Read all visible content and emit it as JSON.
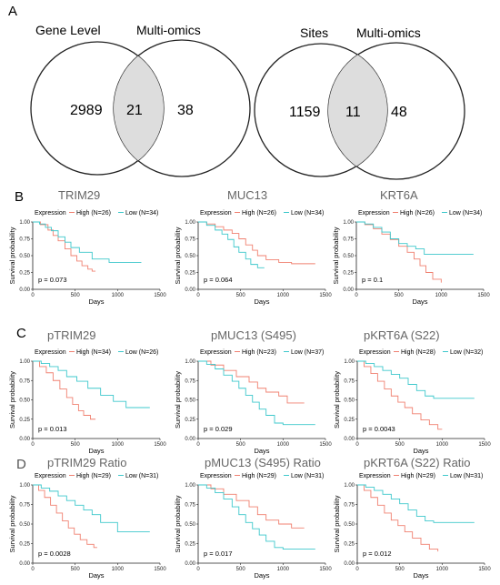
{
  "panel_labels": {
    "A": "A",
    "B": "B",
    "C": "C",
    "D": "D"
  },
  "venn": [
    {
      "left_label": "Gene Level",
      "right_label": "Multi-omics",
      "left_only": "2989",
      "overlap": "21",
      "right_only": "38"
    },
    {
      "left_label": "Sites",
      "right_label": "Multi-omics",
      "left_only": "1159",
      "overlap": "11",
      "right_only": "48"
    }
  ],
  "colors": {
    "high": "#f08070",
    "low": "#3ec8cc",
    "venn_stroke": "#222222",
    "overlap_fill": "#dddddd"
  },
  "chart_data": [
    {
      "type": "line",
      "title": "TRIM29",
      "legend_title": "Expression",
      "high_label": "High (N=26)",
      "low_label": "Low (N=34)",
      "p_value": "p = 0.073",
      "xlabel": "Days",
      "ylabel": "Survival probability",
      "xlim": [
        0,
        1500
      ],
      "ylim": [
        0,
        1
      ],
      "xticks": [
        0,
        500,
        1000,
        1500
      ],
      "yticks": [
        0,
        0.25,
        0.5,
        0.75,
        1.0
      ],
      "ytick_labels": [
        "0.00",
        "0.25",
        "0.50",
        "0.75",
        "1.00"
      ],
      "series": [
        {
          "name": "High (N=26)",
          "x": [
            0,
            90,
            180,
            240,
            300,
            380,
            450,
            520,
            580,
            650,
            700,
            740
          ],
          "y": [
            1.0,
            0.96,
            0.88,
            0.8,
            0.72,
            0.6,
            0.5,
            0.42,
            0.35,
            0.3,
            0.27,
            0.27
          ]
        },
        {
          "name": "Low (N=34)",
          "x": [
            0,
            80,
            150,
            220,
            300,
            380,
            450,
            550,
            700,
            900,
            1100,
            1280
          ],
          "y": [
            1.0,
            0.97,
            0.92,
            0.87,
            0.78,
            0.7,
            0.62,
            0.55,
            0.45,
            0.4,
            0.4,
            0.4
          ]
        }
      ]
    },
    {
      "type": "line",
      "title": "MUC13",
      "legend_title": "Expression",
      "high_label": "High (N=26)",
      "low_label": "Low (N=34)",
      "p_value": "p = 0.064",
      "xlabel": "Days",
      "ylabel": "Survival probability",
      "xlim": [
        0,
        1500
      ],
      "ylim": [
        0,
        1
      ],
      "xticks": [
        0,
        500,
        1000,
        1500
      ],
      "yticks": [
        0,
        0.25,
        0.5,
        0.75,
        1.0
      ],
      "ytick_labels": [
        "0.00",
        "0.25",
        "0.50",
        "0.75",
        "1.00"
      ],
      "series": [
        {
          "name": "High (N=26)",
          "x": [
            0,
            100,
            200,
            300,
            400,
            480,
            560,
            640,
            700,
            800,
            950,
            1100,
            1380
          ],
          "y": [
            1.0,
            0.97,
            0.93,
            0.88,
            0.83,
            0.75,
            0.66,
            0.58,
            0.5,
            0.44,
            0.4,
            0.38,
            0.38
          ]
        },
        {
          "name": "Low (N=34)",
          "x": [
            0,
            100,
            200,
            280,
            350,
            420,
            480,
            560,
            620,
            700,
            780
          ],
          "y": [
            1.0,
            0.95,
            0.88,
            0.82,
            0.74,
            0.63,
            0.55,
            0.45,
            0.37,
            0.32,
            0.32
          ]
        }
      ]
    },
    {
      "type": "line",
      "title": "KRT6A",
      "legend_title": "Expression",
      "high_label": "High (N=26)",
      "low_label": "Low (N=34)",
      "p_value": "p = 0.1",
      "xlabel": "Days",
      "ylabel": "Survival probability",
      "xlim": [
        0,
        1500
      ],
      "ylim": [
        0,
        1
      ],
      "xticks": [
        0,
        500,
        1000,
        1500
      ],
      "yticks": [
        0,
        0.25,
        0.5,
        0.75,
        1.0
      ],
      "ytick_labels": [
        "0.00",
        "0.25",
        "0.50",
        "0.75",
        "1.00"
      ],
      "series": [
        {
          "name": "High (N=26)",
          "x": [
            0,
            100,
            200,
            300,
            400,
            500,
            600,
            680,
            750,
            820,
            900,
            1000
          ],
          "y": [
            1.0,
            0.96,
            0.9,
            0.82,
            0.74,
            0.64,
            0.55,
            0.45,
            0.35,
            0.25,
            0.15,
            0.1
          ]
        },
        {
          "name": "Low (N=34)",
          "x": [
            0,
            100,
            200,
            300,
            400,
            500,
            600,
            700,
            800,
            1000,
            1200,
            1380
          ],
          "y": [
            1.0,
            0.97,
            0.92,
            0.85,
            0.75,
            0.68,
            0.64,
            0.6,
            0.52,
            0.52,
            0.52,
            0.52
          ]
        }
      ]
    },
    {
      "type": "line",
      "title": "pTRIM29",
      "legend_title": "Expression",
      "high_label": "High (N=34)",
      "low_label": "Low (N=26)",
      "p_value": "p = 0.013",
      "xlabel": "Days",
      "ylabel": "Survival probability",
      "xlim": [
        0,
        1500
      ],
      "ylim": [
        0,
        1
      ],
      "xticks": [
        0,
        500,
        1000,
        1500
      ],
      "yticks": [
        0,
        0.25,
        0.5,
        0.75,
        1.0
      ],
      "ytick_labels": [
        "0.00",
        "0.25",
        "0.50",
        "0.75",
        "1.00"
      ],
      "series": [
        {
          "name": "High (N=34)",
          "x": [
            0,
            80,
            160,
            240,
            320,
            400,
            470,
            540,
            600,
            680,
            740
          ],
          "y": [
            1.0,
            0.93,
            0.85,
            0.75,
            0.64,
            0.53,
            0.44,
            0.36,
            0.3,
            0.25,
            0.25
          ]
        },
        {
          "name": "Low (N=26)",
          "x": [
            0,
            100,
            200,
            300,
            400,
            520,
            650,
            800,
            950,
            1100,
            1380
          ],
          "y": [
            1.0,
            0.97,
            0.93,
            0.88,
            0.8,
            0.74,
            0.65,
            0.56,
            0.48,
            0.4,
            0.4
          ]
        }
      ]
    },
    {
      "type": "line",
      "title": "pMUC13 (S495)",
      "legend_title": "Expression",
      "high_label": "High (N=23)",
      "low_label": "Low (N=37)",
      "p_value": "p = 0.029",
      "xlabel": "Days",
      "ylabel": "Survival probability",
      "xlim": [
        0,
        1500
      ],
      "ylim": [
        0,
        1
      ],
      "xticks": [
        0,
        500,
        1000,
        1500
      ],
      "yticks": [
        0,
        0.25,
        0.5,
        0.75,
        1.0
      ],
      "ytick_labels": [
        "0.00",
        "0.25",
        "0.50",
        "0.75",
        "1.00"
      ],
      "series": [
        {
          "name": "High (N=23)",
          "x": [
            0,
            150,
            300,
            450,
            600,
            700,
            800,
            950,
            1050,
            1150,
            1250
          ],
          "y": [
            1.0,
            0.95,
            0.88,
            0.8,
            0.73,
            0.65,
            0.6,
            0.55,
            0.46,
            0.46,
            0.46
          ]
        },
        {
          "name": "Low (N=37)",
          "x": [
            0,
            100,
            200,
            300,
            400,
            480,
            560,
            640,
            720,
            800,
            900,
            1000,
            1380
          ],
          "y": [
            1.0,
            0.96,
            0.9,
            0.82,
            0.74,
            0.65,
            0.56,
            0.47,
            0.38,
            0.3,
            0.2,
            0.18,
            0.18
          ]
        }
      ]
    },
    {
      "type": "line",
      "title": "pKRT6A (S22)",
      "legend_title": "Expression",
      "high_label": "High (N=28)",
      "low_label": "Low (N=32)",
      "p_value": "p = 0.0043",
      "xlabel": "Days",
      "ylabel": "Survival probability",
      "xlim": [
        0,
        1500
      ],
      "ylim": [
        0,
        1
      ],
      "xticks": [
        0,
        500,
        1000,
        1500
      ],
      "yticks": [
        0,
        0.25,
        0.5,
        0.75,
        1.0
      ],
      "ytick_labels": [
        "0.00",
        "0.25",
        "0.50",
        "0.75",
        "1.00"
      ],
      "series": [
        {
          "name": "High (N=28)",
          "x": [
            0,
            80,
            160,
            240,
            320,
            400,
            480,
            560,
            650,
            750,
            850,
            950,
            1000
          ],
          "y": [
            1.0,
            0.93,
            0.84,
            0.74,
            0.64,
            0.55,
            0.47,
            0.4,
            0.32,
            0.24,
            0.18,
            0.12,
            0.12
          ]
        },
        {
          "name": "Low (N=32)",
          "x": [
            0,
            100,
            200,
            300,
            400,
            500,
            600,
            700,
            800,
            900,
            1100,
            1380
          ],
          "y": [
            1.0,
            0.97,
            0.93,
            0.88,
            0.83,
            0.78,
            0.7,
            0.62,
            0.55,
            0.52,
            0.52,
            0.52
          ]
        }
      ]
    },
    {
      "type": "line",
      "title": "pTRIM29 Ratio",
      "legend_title": "Expression",
      "high_label": "High (N=29)",
      "low_label": "Low (N=31)",
      "p_value": "p = 0.0028",
      "xlabel": "Days",
      "ylabel": "Survival probability",
      "xlim": [
        0,
        1500
      ],
      "ylim": [
        0,
        1
      ],
      "xticks": [
        0,
        500,
        1000,
        1500
      ],
      "yticks": [
        0,
        0.25,
        0.5,
        0.75,
        1.0
      ],
      "ytick_labels": [
        "0.00",
        "0.25",
        "0.50",
        "0.75",
        "1.00"
      ],
      "series": [
        {
          "name": "High (N=29)",
          "x": [
            0,
            70,
            140,
            210,
            280,
            350,
            420,
            490,
            560,
            640,
            720,
            760
          ],
          "y": [
            1.0,
            0.93,
            0.84,
            0.74,
            0.64,
            0.54,
            0.45,
            0.37,
            0.3,
            0.24,
            0.2,
            0.2
          ]
        },
        {
          "name": "Low (N=31)",
          "x": [
            0,
            100,
            200,
            300,
            400,
            500,
            600,
            700,
            800,
            1000,
            1200,
            1380
          ],
          "y": [
            1.0,
            0.96,
            0.92,
            0.86,
            0.8,
            0.74,
            0.68,
            0.62,
            0.52,
            0.4,
            0.4,
            0.4
          ]
        }
      ]
    },
    {
      "type": "line",
      "title": "pMUC13 (S495) Ratio",
      "legend_title": "Expression",
      "high_label": "High (N=29)",
      "low_label": "Low (N=31)",
      "p_value": "p = 0.017",
      "xlabel": "Days",
      "ylabel": "Survival probability",
      "xlim": [
        0,
        1500
      ],
      "ylim": [
        0,
        1
      ],
      "xticks": [
        0,
        500,
        1000,
        1500
      ],
      "yticks": [
        0,
        0.25,
        0.5,
        0.75,
        1.0
      ],
      "ytick_labels": [
        "0.00",
        "0.25",
        "0.50",
        "0.75",
        "1.00"
      ],
      "series": [
        {
          "name": "High (N=29)",
          "x": [
            0,
            150,
            300,
            450,
            600,
            700,
            800,
            950,
            1100,
            1250
          ],
          "y": [
            1.0,
            0.95,
            0.88,
            0.8,
            0.72,
            0.62,
            0.55,
            0.5,
            0.45,
            0.45
          ]
        },
        {
          "name": "Low (N=31)",
          "x": [
            0,
            100,
            200,
            300,
            400,
            480,
            560,
            640,
            720,
            800,
            900,
            1000,
            1380
          ],
          "y": [
            1.0,
            0.96,
            0.9,
            0.82,
            0.72,
            0.62,
            0.52,
            0.44,
            0.36,
            0.28,
            0.2,
            0.18,
            0.18
          ]
        }
      ]
    },
    {
      "type": "line",
      "title": "pKRT6A (S22) Ratio",
      "legend_title": "Expression",
      "high_label": "High (N=29)",
      "low_label": "Low (N=31)",
      "p_value": "p = 0.012",
      "xlabel": "Days",
      "ylabel": "Survival probability",
      "xlim": [
        0,
        1500
      ],
      "ylim": [
        0,
        1
      ],
      "xticks": [
        0,
        500,
        1000,
        1500
      ],
      "yticks": [
        0,
        0.25,
        0.5,
        0.75,
        1.0
      ],
      "ytick_labels": [
        "0.00",
        "0.25",
        "0.50",
        "0.75",
        "1.00"
      ],
      "series": [
        {
          "name": "High (N=29)",
          "x": [
            0,
            80,
            160,
            240,
            320,
            400,
            480,
            560,
            650,
            750,
            850,
            950
          ],
          "y": [
            1.0,
            0.93,
            0.84,
            0.74,
            0.64,
            0.55,
            0.48,
            0.4,
            0.32,
            0.24,
            0.18,
            0.15
          ]
        },
        {
          "name": "Low (N=31)",
          "x": [
            0,
            100,
            200,
            300,
            400,
            500,
            600,
            700,
            800,
            900,
            1100,
            1380
          ],
          "y": [
            1.0,
            0.97,
            0.93,
            0.88,
            0.82,
            0.76,
            0.68,
            0.6,
            0.54,
            0.52,
            0.52,
            0.52
          ]
        }
      ]
    }
  ]
}
